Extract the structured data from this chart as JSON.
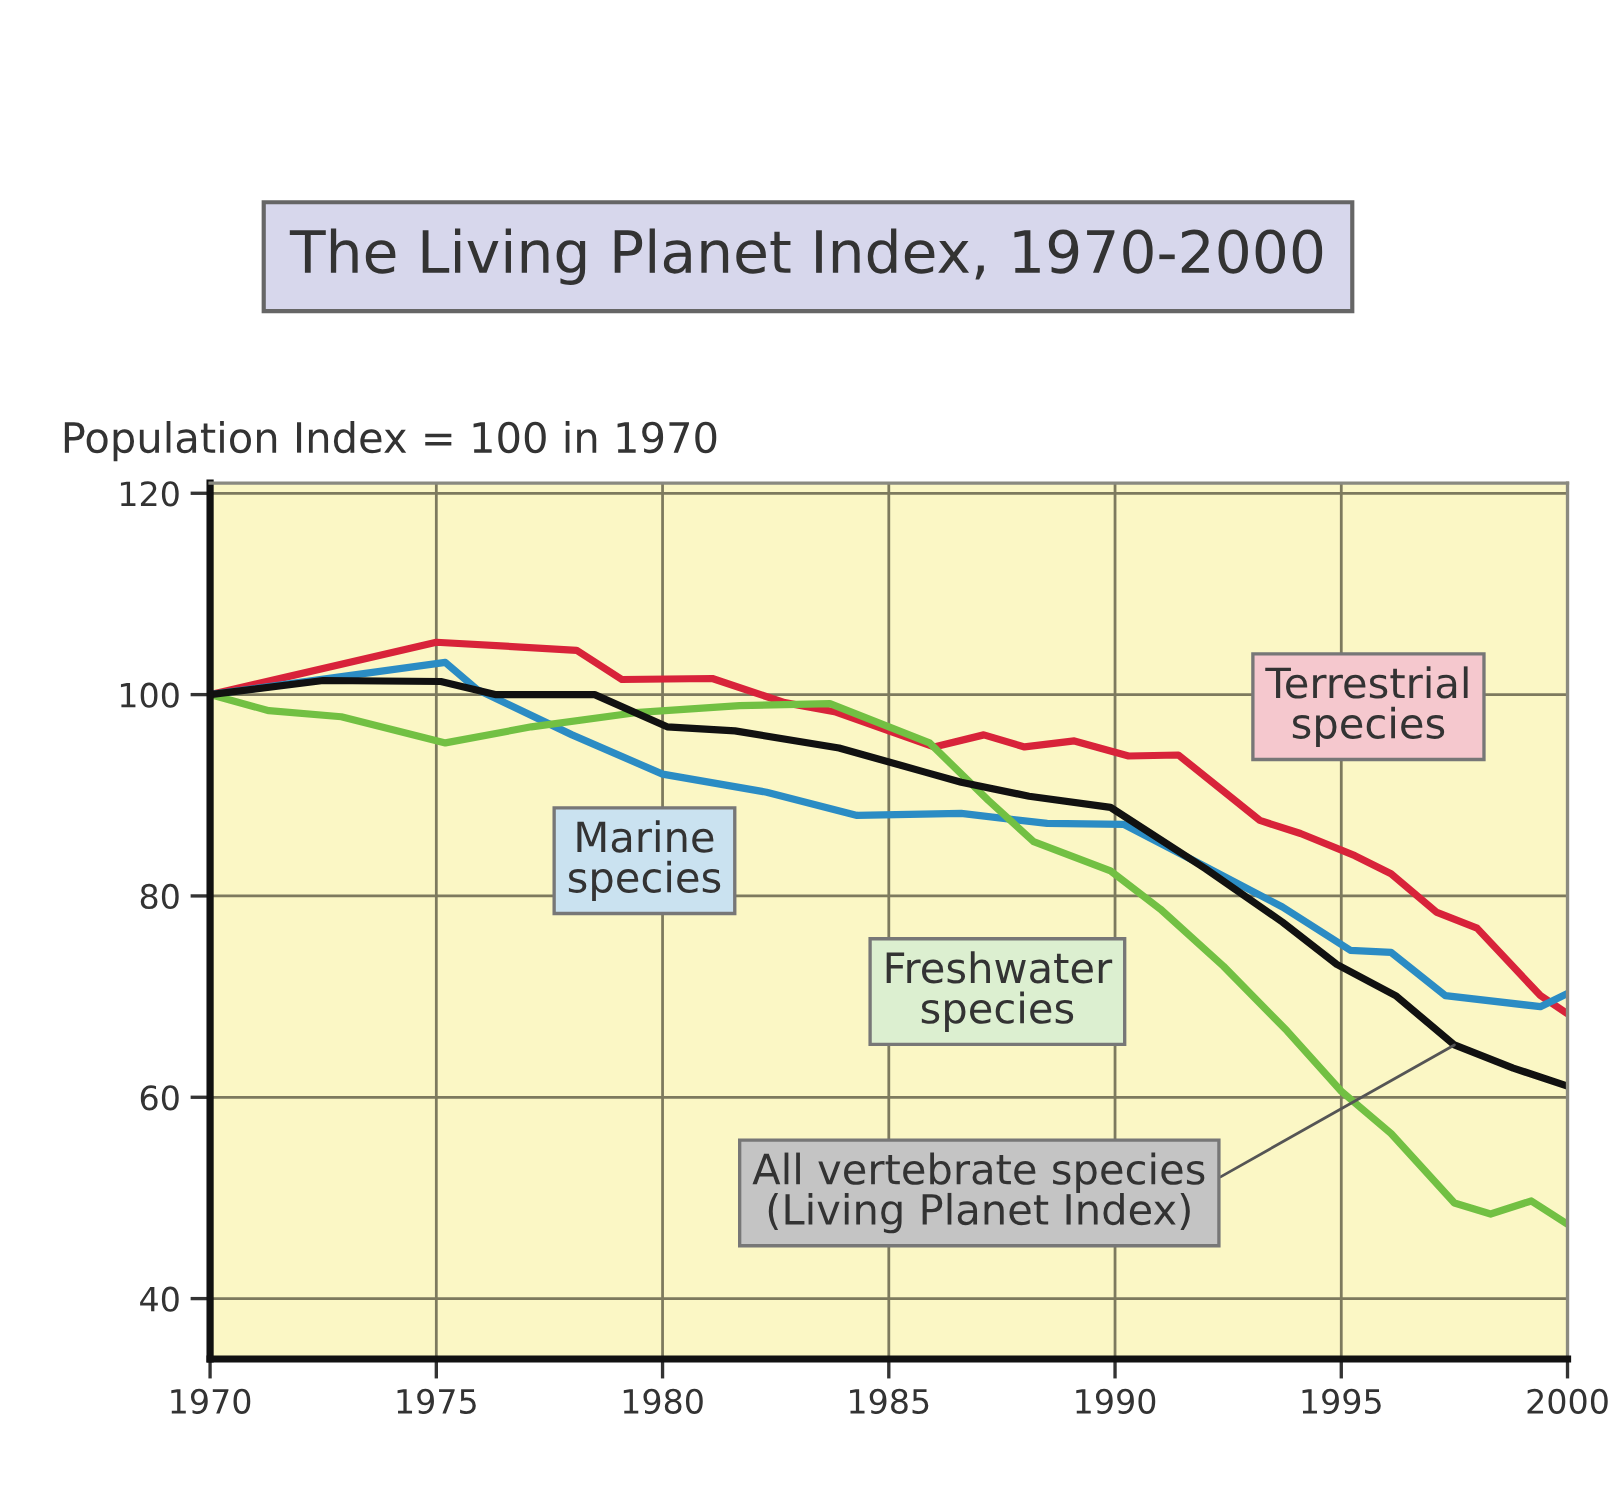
{
  "chart_data": {
    "type": "line",
    "title": "The Living Planet Index, 1970-2000",
    "ylabel": "Population Index = 100 in 1970",
    "xlim": [
      1970,
      2000
    ],
    "xticks": [
      1970,
      1975,
      1980,
      1985,
      1990,
      1995,
      2000
    ],
    "ylim": [
      34,
      121
    ],
    "yticks": [
      40,
      60,
      80,
      100,
      120
    ],
    "grid": true,
    "marker": "none",
    "line_style": "solid",
    "series": [
      {
        "name": "Terrestrial\nspecies",
        "color": "#d8233a",
        "x": [
          1970,
          1975,
          1978.1,
          1979.1,
          1981.1,
          1982.7,
          1983.8,
          1986.0,
          1987.1,
          1988.0,
          1989.1,
          1990.3,
          1991.4,
          1993.2,
          1994.1,
          1995.3,
          1996.1,
          1997.1,
          1998.0,
          1999.4,
          2000
        ],
        "values": [
          100,
          105.2,
          104.4,
          101.5,
          101.6,
          99.2,
          98.3,
          94.8,
          96.0,
          94.8,
          95.4,
          93.9,
          94.0,
          87.5,
          86.2,
          84.0,
          82.2,
          78.4,
          76.8,
          70.1,
          68.3
        ]
      },
      {
        "name": "Marine\nspecies",
        "color": "#2b8cc4",
        "x": [
          1970,
          1975.2,
          1975.9,
          1978.0,
          1980.0,
          1982.3,
          1984.3,
          1986.6,
          1988.5,
          1990.2,
          1992.0,
          1993.7,
          1995.2,
          1996.1,
          1997.3,
          1999.4,
          2000
        ],
        "values": [
          100,
          103.2,
          100.5,
          96.0,
          92.1,
          90.3,
          88.0,
          88.2,
          87.2,
          87.1,
          82.9,
          78.9,
          74.6,
          74.4,
          70.1,
          69.0,
          70.3
        ]
      },
      {
        "name": "Freshwater\nspecies",
        "color": "#72c043",
        "x": [
          1970,
          1971.3,
          1972.9,
          1975.2,
          1977.1,
          1979.4,
          1981.7,
          1983.7,
          1985.9,
          1987.2,
          1988.2,
          1989.9,
          1991.0,
          1992.4,
          1993.8,
          1995.0,
          1996.1,
          1997.5,
          1998.3,
          1999.2,
          2000
        ],
        "values": [
          100,
          98.4,
          97.8,
          95.2,
          96.8,
          98.2,
          98.9,
          99.1,
          95.2,
          89.5,
          85.4,
          82.5,
          78.7,
          73.0,
          66.6,
          60.6,
          56.4,
          49.5,
          48.4,
          49.7,
          47.4
        ]
      },
      {
        "name": "All vertebrate species\n(Living Planet Index)",
        "color": "#111111",
        "x": [
          1970,
          1972.5,
          1975.1,
          1976.3,
          1978.5,
          1980.1,
          1981.6,
          1983.9,
          1985.8,
          1986.6,
          1988.1,
          1989.9,
          1992.0,
          1993.7,
          1994.9,
          1996.2,
          1997.5,
          1998.8,
          2000
        ],
        "values": [
          100,
          101.4,
          101.3,
          100.0,
          100.0,
          96.8,
          96.4,
          94.7,
          92.3,
          91.3,
          89.9,
          88.8,
          82.7,
          77.4,
          73.2,
          70.1,
          65.2,
          62.9,
          61.1
        ]
      }
    ]
  }
}
